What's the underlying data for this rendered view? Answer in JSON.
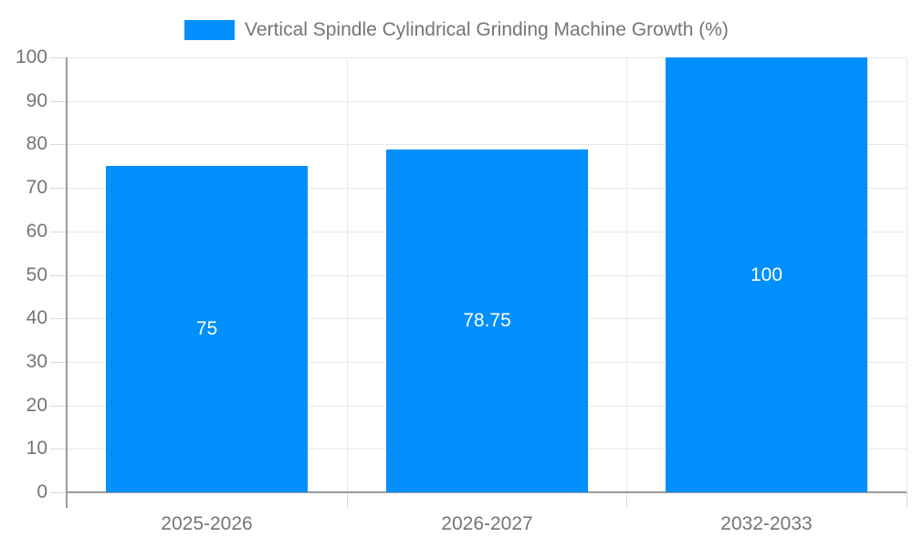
{
  "chart_data": {
    "type": "bar",
    "title": "Vertical Spindle Cylindrical Grinding Machine Growth (%)",
    "categories": [
      "2025-2026",
      "2026-2027",
      "2032-2033"
    ],
    "values": [
      75,
      78.75,
      100
    ],
    "value_labels": [
      "75",
      "78.75",
      "100"
    ],
    "xlabel": "",
    "ylabel": "",
    "ylim": [
      0,
      100
    ],
    "ytick_step": 10,
    "ytick_labels": [
      "0",
      "10",
      "20",
      "30",
      "40",
      "50",
      "60",
      "70",
      "80",
      "90",
      "100"
    ],
    "grid": true,
    "legend_position": "top",
    "series": [
      {
        "name": "Vertical Spindle Cylindrical Grinding Machine Growth (%)",
        "values": [
          75,
          78.75,
          100
        ]
      }
    ]
  },
  "colors": {
    "bar": "#008FFB",
    "grid": "#e8e8e8",
    "axis": "#9b9b9b",
    "tick": "#d9d9d9",
    "axis_label": "#757575",
    "legend_text": "#757575",
    "value_label": "#ffffff",
    "background": "#ffffff"
  }
}
